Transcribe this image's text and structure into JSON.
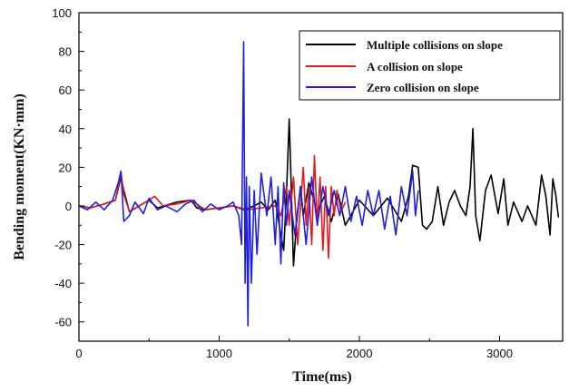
{
  "chart_data": {
    "type": "line",
    "title": "",
    "xlabel": "Time(ms)",
    "ylabel": "Bending moment(KN·mm)",
    "xlim": [
      0,
      3450
    ],
    "ylim": [
      -70,
      100
    ],
    "xticks": [
      0,
      1000,
      2000,
      3000
    ],
    "yticks": [
      -60,
      -40,
      -20,
      0,
      20,
      40,
      60,
      80,
      100
    ],
    "grid": false,
    "legend_position": "top-right",
    "series": [
      {
        "name": "Multiple collisions on slope",
        "color": "#000000",
        "x": [
          0,
          80,
          180,
          260,
          300,
          320,
          360,
          500,
          560,
          700,
          800,
          840,
          900,
          1000,
          1100,
          1180,
          1250,
          1300,
          1350,
          1400,
          1440,
          1460,
          1480,
          1500,
          1510,
          1530,
          1550,
          1580,
          1600,
          1640,
          1700,
          1750,
          1800,
          1850,
          1900,
          2000,
          2100,
          2200,
          2300,
          2350,
          2380,
          2420,
          2450,
          2480,
          2520,
          2560,
          2600,
          2640,
          2680,
          2720,
          2760,
          2790,
          2810,
          2830,
          2860,
          2900,
          2940,
          2990,
          3030,
          3060,
          3100,
          3160,
          3200,
          3260,
          3300,
          3330,
          3360,
          3380,
          3400,
          3420
        ],
        "y": [
          0,
          -1,
          1,
          3,
          15,
          8,
          -3,
          3,
          -1,
          2,
          3,
          -1,
          -2,
          -1,
          0,
          -2,
          0,
          2,
          -2,
          3,
          -15,
          -23,
          5,
          45,
          20,
          -31,
          -10,
          10,
          -5,
          12,
          -3,
          5,
          -8,
          6,
          -10,
          3,
          -5,
          4,
          -8,
          5,
          21,
          20,
          -10,
          -12,
          -8,
          10,
          -10,
          2,
          8,
          0,
          -5,
          10,
          40,
          -5,
          -18,
          8,
          16,
          -4,
          14,
          -10,
          2,
          -8,
          0,
          -10,
          16,
          5,
          -15,
          14,
          6,
          -6
        ]
      },
      {
        "name": "A collision on slope",
        "color": "#e31a1c",
        "x": [
          0,
          80,
          180,
          260,
          300,
          320,
          360,
          500,
          540,
          600,
          700,
          800,
          840,
          900,
          1000,
          1100,
          1200,
          1300,
          1400,
          1440,
          1480,
          1500,
          1530,
          1560,
          1600,
          1620,
          1640,
          1660,
          1680,
          1700,
          1720,
          1740,
          1760,
          1780,
          1800,
          1820,
          1840,
          1870,
          1900
        ],
        "y": [
          0,
          -1,
          1,
          3,
          17,
          6,
          -3,
          3,
          5,
          0,
          1,
          3,
          1,
          -2,
          -1,
          0,
          -2,
          -1,
          0,
          -5,
          10,
          -10,
          15,
          -20,
          20,
          -10,
          10,
          -20,
          26,
          -10,
          15,
          -23,
          10,
          -27,
          10,
          -5,
          8,
          -3,
          2
        ]
      },
      {
        "name": "Zero collision on slope",
        "color": "#1f1fe0",
        "x": [
          0,
          60,
          120,
          180,
          240,
          280,
          300,
          320,
          360,
          400,
          460,
          500,
          560,
          620,
          700,
          760,
          820,
          880,
          940,
          1000,
          1060,
          1100,
          1140,
          1160,
          1175,
          1185,
          1195,
          1205,
          1215,
          1230,
          1250,
          1270,
          1300,
          1340,
          1370,
          1400,
          1420,
          1440,
          1460,
          1480,
          1500,
          1540,
          1580,
          1620,
          1660,
          1700,
          1740,
          1780,
          1820,
          1860,
          1900,
          1940,
          1980,
          2020,
          2060,
          2100,
          2140,
          2180,
          2220,
          2260,
          2300,
          2340,
          2380,
          2400,
          2420
        ],
        "y": [
          0,
          -2,
          2,
          -2,
          3,
          12,
          18,
          -8,
          -5,
          2,
          -4,
          4,
          -2,
          0,
          -3,
          1,
          3,
          -3,
          1,
          -2,
          0,
          2,
          -5,
          -20,
          85,
          -40,
          15,
          -62,
          10,
          -40,
          8,
          -25,
          17,
          -5,
          15,
          -20,
          10,
          -30,
          12,
          -10,
          8,
          -15,
          10,
          -20,
          15,
          -10,
          10,
          -5,
          8,
          -5,
          10,
          -8,
          5,
          -10,
          8,
          -5,
          8,
          -12,
          5,
          -15,
          10,
          -5,
          18,
          -5,
          8
        ]
      }
    ]
  }
}
